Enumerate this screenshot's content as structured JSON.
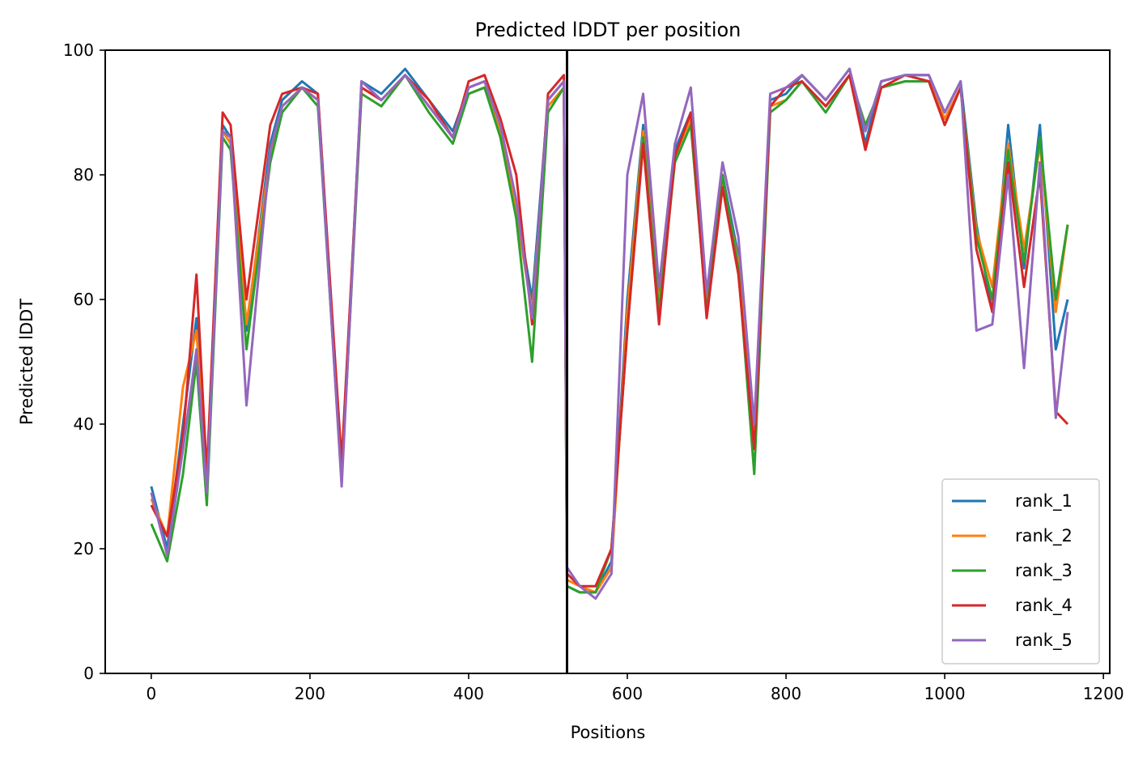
{
  "chart_data": {
    "type": "line",
    "title": "Predicted lDDT per position",
    "xlabel": "Positions",
    "ylabel": "Predicted lDDT",
    "xlim": [
      -58,
      1208
    ],
    "ylim": [
      0,
      100
    ],
    "xticks": [
      0,
      200,
      400,
      600,
      800,
      1000,
      1200
    ],
    "yticks": [
      0,
      20,
      40,
      60,
      80,
      100
    ],
    "chain_break": 524,
    "grid": false,
    "legend_position": "lower-right",
    "series": [
      {
        "name": "rank_1",
        "color": "#1f77b4",
        "x": [
          0,
          20,
          40,
          57,
          70,
          90,
          100,
          120,
          150,
          165,
          190,
          210,
          240,
          265,
          290,
          320,
          350,
          380,
          400,
          420,
          440,
          460,
          480,
          500,
          520,
          524,
          540,
          560,
          580,
          600,
          620,
          640,
          660,
          680,
          700,
          720,
          740,
          760,
          780,
          800,
          820,
          850,
          880,
          900,
          920,
          950,
          980,
          1000,
          1020,
          1040,
          1060,
          1080,
          1100,
          1120,
          1140,
          1155
        ],
        "values": [
          30,
          20,
          40,
          57,
          30,
          88,
          86,
          55,
          85,
          92,
          95,
          93,
          32,
          95,
          93,
          97,
          92,
          87,
          94,
          95,
          88,
          75,
          60,
          92,
          95,
          14,
          13,
          13,
          18,
          60,
          88,
          60,
          84,
          90,
          60,
          80,
          67,
          38,
          92,
          93,
          96,
          92,
          97,
          85,
          95,
          96,
          96,
          90,
          95,
          72,
          58,
          88,
          65,
          88,
          52,
          60
        ]
      },
      {
        "name": "rank_2",
        "color": "#ff7f0e",
        "x": [
          0,
          20,
          40,
          57,
          70,
          90,
          100,
          120,
          150,
          165,
          190,
          210,
          240,
          265,
          290,
          320,
          350,
          380,
          400,
          420,
          440,
          460,
          480,
          500,
          520,
          524,
          540,
          560,
          580,
          600,
          620,
          640,
          660,
          680,
          700,
          720,
          740,
          760,
          780,
          800,
          820,
          850,
          880,
          900,
          920,
          950,
          980,
          1000,
          1020,
          1040,
          1060,
          1080,
          1100,
          1120,
          1140,
          1155
        ],
        "values": [
          28,
          22,
          46,
          55,
          30,
          87,
          85,
          56,
          83,
          91,
          94,
          92,
          33,
          94,
          92,
          96,
          91,
          86,
          93,
          94,
          87,
          74,
          58,
          91,
          94,
          15,
          14,
          13,
          17,
          58,
          87,
          59,
          83,
          89,
          59,
          79,
          66,
          39,
          91,
          92,
          95,
          91,
          96,
          84,
          94,
          95,
          95,
          89,
          94,
          71,
          62,
          85,
          68,
          85,
          58,
          72
        ]
      },
      {
        "name": "rank_3",
        "color": "#2ca02c",
        "x": [
          0,
          20,
          40,
          57,
          70,
          90,
          100,
          120,
          150,
          165,
          190,
          210,
          240,
          265,
          290,
          320,
          350,
          380,
          400,
          420,
          440,
          460,
          480,
          500,
          520,
          524,
          540,
          560,
          580,
          600,
          620,
          640,
          660,
          680,
          700,
          720,
          740,
          760,
          780,
          800,
          820,
          850,
          880,
          900,
          920,
          950,
          980,
          1000,
          1020,
          1040,
          1060,
          1080,
          1100,
          1120,
          1140,
          1155
        ],
        "values": [
          24,
          18,
          32,
          50,
          27,
          86,
          84,
          52,
          82,
          90,
          94,
          91,
          31,
          93,
          91,
          96,
          90,
          85,
          93,
          94,
          86,
          73,
          50,
          90,
          94,
          14,
          13,
          13,
          20,
          55,
          86,
          58,
          82,
          88,
          58,
          80,
          65,
          32,
          90,
          92,
          95,
          90,
          96,
          88,
          94,
          95,
          95,
          88,
          94,
          70,
          60,
          84,
          66,
          86,
          60,
          72
        ]
      },
      {
        "name": "rank_4",
        "color": "#d62728",
        "x": [
          0,
          20,
          40,
          57,
          70,
          90,
          100,
          120,
          150,
          165,
          190,
          210,
          240,
          265,
          290,
          320,
          350,
          380,
          400,
          420,
          440,
          460,
          480,
          500,
          520,
          524,
          540,
          560,
          580,
          600,
          620,
          640,
          660,
          680,
          700,
          720,
          740,
          760,
          780,
          800,
          820,
          850,
          880,
          900,
          920,
          950,
          980,
          1000,
          1020,
          1040,
          1060,
          1080,
          1100,
          1120,
          1140,
          1155
        ],
        "values": [
          27,
          22,
          38,
          64,
          32,
          90,
          88,
          60,
          88,
          93,
          94,
          93,
          34,
          94,
          92,
          96,
          92,
          86,
          95,
          96,
          89,
          80,
          56,
          93,
          96,
          16,
          14,
          14,
          20,
          55,
          85,
          56,
          83,
          90,
          57,
          78,
          64,
          36,
          91,
          94,
          95,
          91,
          96,
          84,
          94,
          96,
          95,
          88,
          94,
          68,
          58,
          82,
          62,
          80,
          42,
          40
        ]
      },
      {
        "name": "rank_5",
        "color": "#9467bd",
        "x": [
          0,
          20,
          40,
          57,
          70,
          90,
          100,
          120,
          150,
          165,
          190,
          210,
          240,
          265,
          290,
          320,
          350,
          380,
          400,
          420,
          440,
          460,
          480,
          500,
          520,
          524,
          540,
          560,
          580,
          600,
          620,
          640,
          660,
          680,
          700,
          720,
          740,
          760,
          780,
          800,
          820,
          850,
          880,
          900,
          920,
          950,
          980,
          1000,
          1020,
          1040,
          1060,
          1080,
          1100,
          1120,
          1140,
          1155
        ],
        "values": [
          29,
          19,
          36,
          52,
          29,
          87,
          86,
          43,
          84,
          91,
          94,
          92,
          30,
          95,
          92,
          96,
          91,
          86,
          94,
          95,
          88,
          76,
          57,
          92,
          95,
          17,
          14,
          12,
          16,
          80,
          93,
          62,
          85,
          94,
          61,
          82,
          70,
          40,
          93,
          94,
          96,
          92,
          97,
          87,
          95,
          96,
          96,
          90,
          95,
          55,
          56,
          80,
          49,
          82,
          41,
          58
        ]
      }
    ]
  }
}
